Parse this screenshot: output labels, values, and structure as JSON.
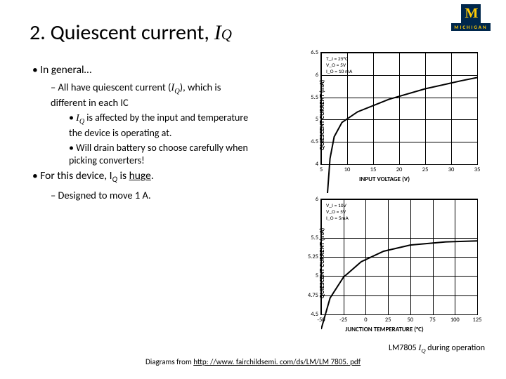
{
  "logo": {
    "m": "M",
    "text": "MICHIGAN",
    "bg": "#00274c",
    "fg": "#ffcb05"
  },
  "title": {
    "num": "2.",
    "text": "Quiescent current,",
    "var": "I",
    "sub": "Q"
  },
  "bullets": {
    "l1a": "In general…",
    "l2a_pre": "All have quiescent current (",
    "l2a_var": "I",
    "l2a_sub": "Q",
    "l2a_post": "), which is different in each IC",
    "l3a_var": "I",
    "l3a_sub": "Q",
    "l3a_post": " is affected by the input and temperature the device is operating at.",
    "l3b": "Will drain battery so choose carefully when picking converters!",
    "l1b_pre": "For this device, I",
    "l1b_sub": "Q",
    "l1b_post": " is ",
    "l1b_huge": "huge",
    "l1b_end": ".",
    "l2b": "Designed to move 1 A."
  },
  "chart1": {
    "type": "line",
    "ylabel": "QUIESCENT CURRENT (mA)",
    "xlabel": "INPUT VOLTAGE (V)",
    "cond": [
      "T_J = 25°C",
      "V_O = 5V",
      "I_O = 10 mA"
    ],
    "yticks": [
      4,
      4.5,
      5,
      5.5,
      6,
      6.5
    ],
    "ylim": [
      4,
      6.5
    ],
    "xticks": [
      5,
      10,
      15,
      20,
      25,
      30,
      35
    ],
    "xlim": [
      5,
      35
    ],
    "curve_points": [
      [
        6,
        4.0
      ],
      [
        6.7,
        4.8
      ],
      [
        7.5,
        5.15
      ],
      [
        9,
        5.38
      ],
      [
        12,
        5.55
      ],
      [
        18,
        5.75
      ],
      [
        25,
        5.92
      ],
      [
        32,
        6.05
      ],
      [
        35,
        6.1
      ]
    ],
    "line_color": "#000000",
    "line_width": 2,
    "grid_color": "#000000",
    "background_color": "#ffffff"
  },
  "chart2": {
    "type": "line",
    "ylabel": "QUIESCENT CURRENT (mA)",
    "xlabel": "JUNCTION TEMPERATURE (°C)",
    "cond": [
      "V_I = 10V",
      "V_O = 5V",
      "I_O = 5mA"
    ],
    "yticks": [
      4.5,
      4.75,
      5,
      5.25,
      5.5,
      6
    ],
    "ylim": [
      4.5,
      6
    ],
    "xticks": [
      -50,
      -25,
      0,
      25,
      50,
      75,
      100,
      125
    ],
    "xlim": [
      -50,
      125
    ],
    "curve_points": [
      [
        -50,
        4.75
      ],
      [
        -40,
        5.05
      ],
      [
        -25,
        5.25
      ],
      [
        -5,
        5.4
      ],
      [
        20,
        5.5
      ],
      [
        50,
        5.56
      ],
      [
        90,
        5.59
      ],
      [
        125,
        5.6
      ]
    ],
    "line_color": "#000000",
    "line_width": 2,
    "grid_color": "#000000",
    "background_color": "#ffffff"
  },
  "caption": {
    "pre": "LM7805 ",
    "var": "I",
    "sub": "Q",
    "post": " during operation"
  },
  "footer": {
    "pre": "Diagrams from ",
    "url": "http: //www. fairchildsemi. com/ds/LM/LM 7805. pdf"
  }
}
